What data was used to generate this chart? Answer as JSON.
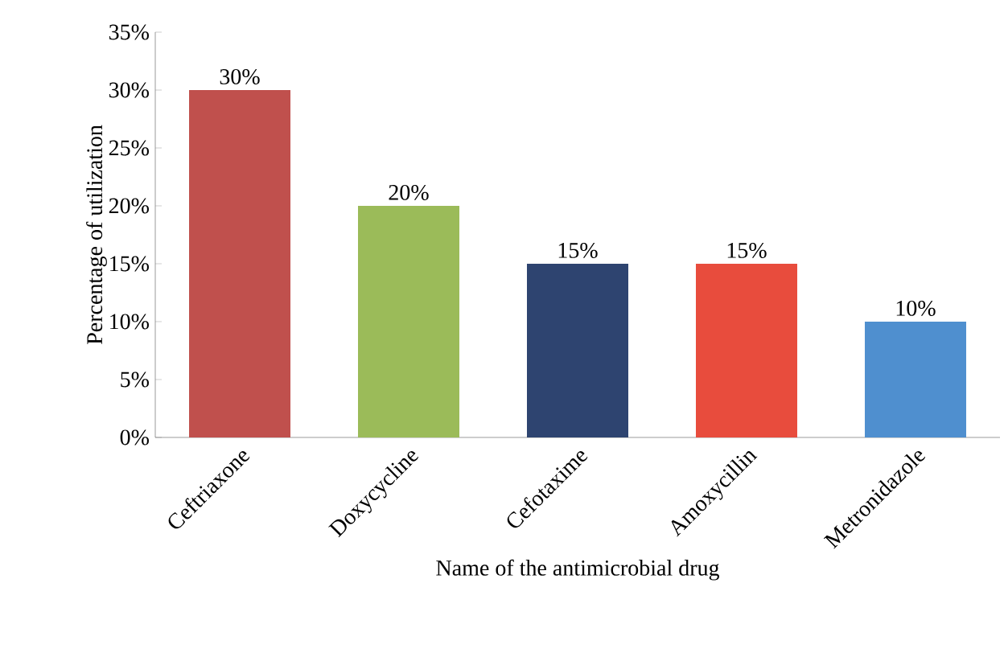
{
  "chart_data": {
    "type": "bar",
    "xlabel": "Name of the antimicrobial drug",
    "ylabel": "Percentage of utilization",
    "categories": [
      "Ceftriaxone",
      "Doxycycline",
      "Cefotaxime",
      "Amoxycillin",
      "Metronidazole"
    ],
    "values": [
      30,
      20,
      15,
      15,
      10
    ],
    "colors": [
      "#c0504d",
      "#9bbb59",
      "#2e4470",
      "#e84c3d",
      "#4f8fcf"
    ],
    "value_labels": [
      "30%",
      "20%",
      "15%",
      "15%",
      "10%"
    ],
    "ylim": [
      0,
      35
    ],
    "yticks": [
      {
        "value": 0,
        "label": "0%"
      },
      {
        "value": 5,
        "label": "5%"
      },
      {
        "value": 10,
        "label": "10%"
      },
      {
        "value": 15,
        "label": "15%"
      },
      {
        "value": 20,
        "label": "20%"
      },
      {
        "value": 25,
        "label": "25%"
      },
      {
        "value": 30,
        "label": "30%"
      },
      {
        "value": 35,
        "label": "35%"
      }
    ]
  }
}
